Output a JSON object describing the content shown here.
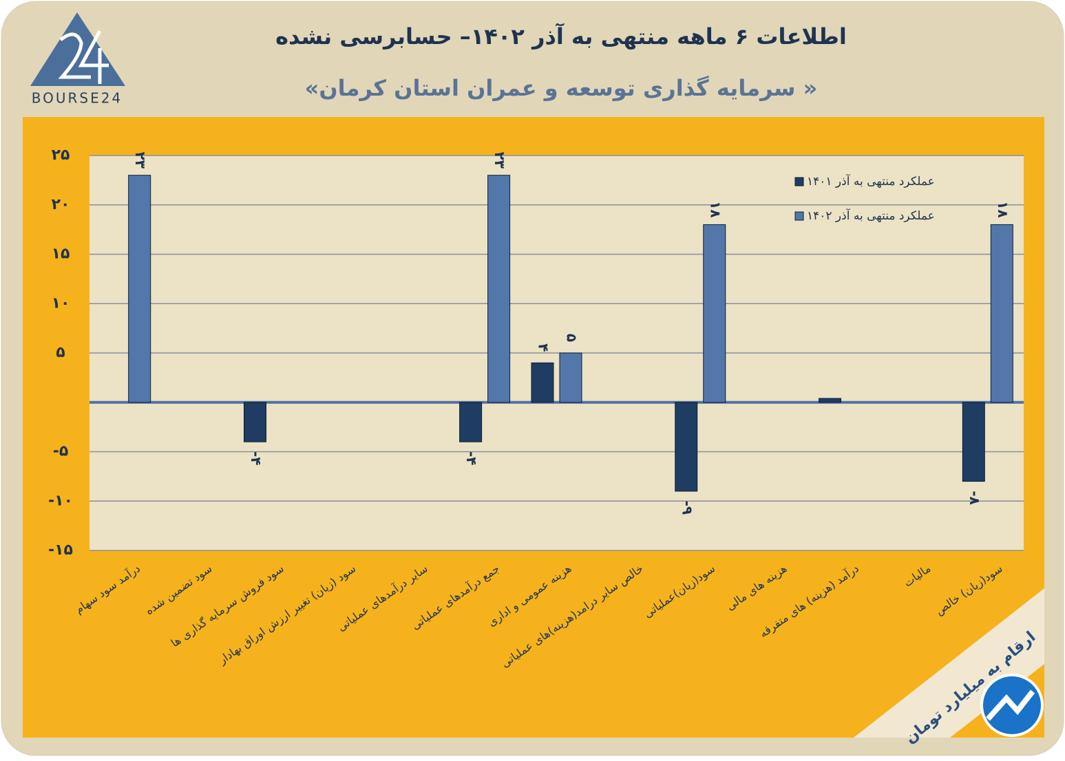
{
  "logo": "BOURSE24",
  "note": "ارقام به میلیارد تومان",
  "chart_data": {
    "type": "bar",
    "title": "اطلاعات ۶ ماهه منتهی به آذر ۱۴۰۲– حسابرسی نشده",
    "subtitle": "«سرمایه گذاری توسعه و عمران استان کرمان »",
    "categories": [
      "درآمد سود سهام",
      "سود تضمین شده",
      "سود فروش سرمایه گذاری ها",
      "سود (زیان) تغییر ارزش اوراق بهادار",
      "سایر درآمدهای عملیاتی",
      "جمع درآمدهای عملیاتی",
      "هزینه عمومی و اداری",
      "خالص سایر درامد(هزینه)های عملیاتی",
      "سود(زیان)عملیاتی",
      "هزینه های مالی",
      "درآمد (هزینه) های متفرقه",
      "مالیات",
      "سود(زیان) خالص"
    ],
    "series": [
      {
        "name": "عملکرد منتهی به آذر ۱۴۰۱",
        "color": "#1f3c63",
        "values": [
          null,
          null,
          -4,
          null,
          0,
          -4,
          4,
          null,
          -9,
          null,
          0.4,
          null,
          -8
        ],
        "value_labels": [
          null,
          null,
          "-۴",
          null,
          null,
          "-۴",
          "۴",
          null,
          "-۹",
          null,
          null,
          null,
          "-۸"
        ]
      },
      {
        "name": "عملکرد منتهی به آذر ۱۴۰۲",
        "color": "#5277aa",
        "values": [
          23,
          null,
          null,
          null,
          0,
          23,
          5,
          null,
          18,
          null,
          0,
          null,
          18
        ],
        "value_labels": [
          "۲۳",
          null,
          null,
          null,
          null,
          "۲۳",
          "۵",
          null,
          "۱۸",
          null,
          null,
          null,
          "۱۸"
        ]
      }
    ],
    "ylim": [
      -15,
      25
    ],
    "yticks": [
      {
        "value": -15,
        "label": "-۱۵"
      },
      {
        "value": -10,
        "label": "-۱۰"
      },
      {
        "value": -5,
        "label": "-۵"
      },
      {
        "value": 5,
        "label": "۵"
      },
      {
        "value": 10,
        "label": "۱۰"
      },
      {
        "value": 15,
        "label": "۱۵"
      },
      {
        "value": 20,
        "label": "۲۰"
      },
      {
        "value": 25,
        "label": "۲۵"
      }
    ],
    "grid": true,
    "legend": "upper-right"
  }
}
